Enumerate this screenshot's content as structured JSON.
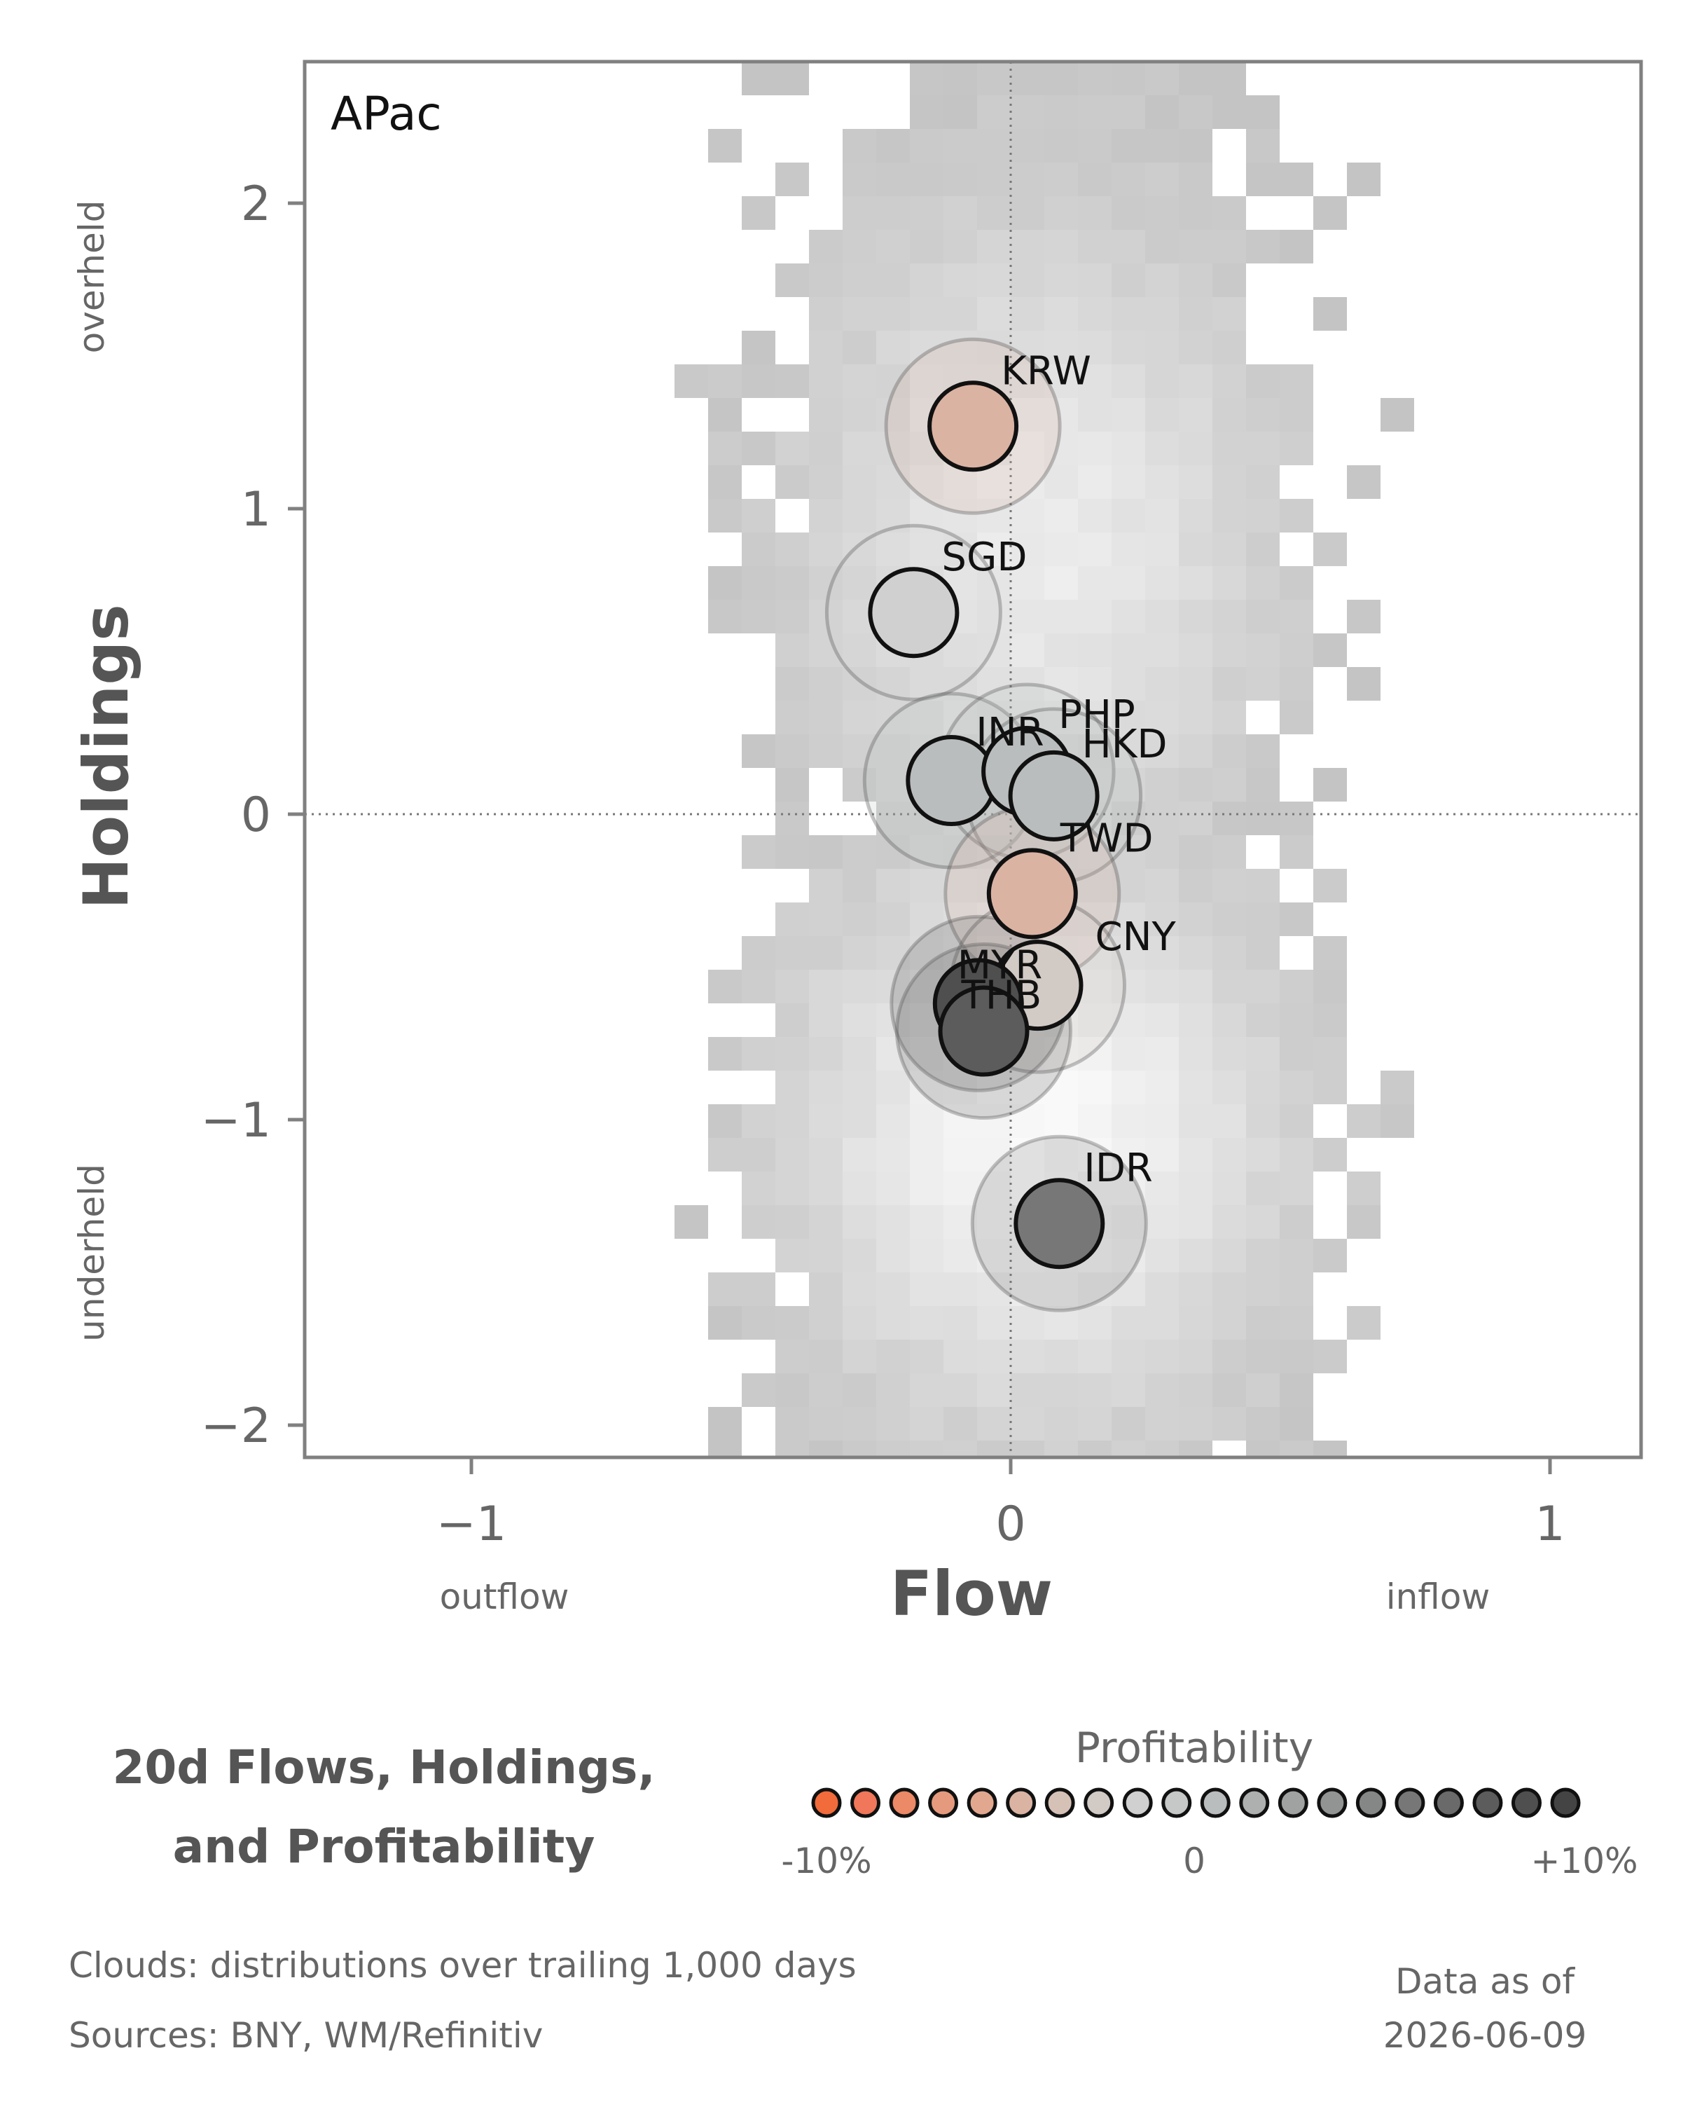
{
  "chart_data": {
    "type": "scatter",
    "region": "APac",
    "xlabel": "Flow",
    "ylabel": "Holdings",
    "x_side_labels": {
      "negative": "outflow",
      "positive": "inflow"
    },
    "y_side_labels": {
      "positive": "overheld",
      "negative": "underheld"
    },
    "xlim": [
      -1.3,
      1.17
    ],
    "ylim": [
      -2.1,
      2.47
    ],
    "xticks": [
      -1,
      0,
      1
    ],
    "xtick_labels": [
      "−1",
      "0",
      "1"
    ],
    "yticks": [
      -2,
      -1,
      0,
      1,
      2
    ],
    "ytick_labels": [
      "−2",
      "−1",
      "0",
      "1",
      "2"
    ],
    "reference_lines": {
      "x": 0,
      "y": 0,
      "style": "dotted"
    },
    "background": "greyscale density clouds (2D histogram)",
    "points": [
      {
        "label": "KRW",
        "flow": -0.07,
        "holdings": 1.27,
        "profitability": -4.5
      },
      {
        "label": "SGD",
        "flow": -0.18,
        "holdings": 0.66,
        "profitability": -2.0
      },
      {
        "label": "INR",
        "flow": -0.11,
        "holdings": 0.11,
        "profitability": 1.0
      },
      {
        "label": "PHP",
        "flow": 0.03,
        "holdings": 0.14,
        "profitability": 0.5
      },
      {
        "label": "HKD",
        "flow": 0.08,
        "holdings": 0.06,
        "profitability": 1.0
      },
      {
        "label": "TWD",
        "flow": 0.04,
        "holdings": -0.26,
        "profitability": -4.5
      },
      {
        "label": "CNY",
        "flow": 0.05,
        "holdings": -0.56,
        "profitability": -3.0
      },
      {
        "label": "MYR",
        "flow": -0.06,
        "holdings": -0.62,
        "profitability": 8.5
      },
      {
        "label": "THB",
        "flow": -0.05,
        "holdings": -0.71,
        "profitability": 8.0
      },
      {
        "label": "IDR",
        "flow": 0.09,
        "holdings": -1.34,
        "profitability": 6.0
      }
    ],
    "legend": {
      "title": "Profitability",
      "range": [
        -10,
        10
      ],
      "tick_labels": [
        "-10%",
        "0",
        "+10%"
      ],
      "colors": [
        "#f26b3a",
        "#f0775a",
        "#ec8966",
        "#e69a7d",
        "#e2a88f",
        "#dbb3a3",
        "#d6c1b7",
        "#d2cac5",
        "#d0d0d0",
        "#c6c8c8",
        "#babdbd",
        "#aeb0b0",
        "#a0a2a2",
        "#929393",
        "#858686",
        "#777777",
        "#6a6a6a",
        "#5c5c5c",
        "#4f4f4f",
        "#444444"
      ]
    }
  },
  "title": "20d Flows, Holdings, and Profitability",
  "title_lines": [
    "20d Flows, Holdings,",
    "and Profitability"
  ],
  "footnotes": {
    "clouds": "Clouds:  distributions over trailing 1,000 days",
    "sources": "Sources:  BNY, WM/Refinitiv"
  },
  "as_of": {
    "label": "Data as of",
    "date": "2026-06-09"
  },
  "colors": {
    "frame": "#808080",
    "label_text": "#555555",
    "cloud": "#c8c8c8"
  }
}
